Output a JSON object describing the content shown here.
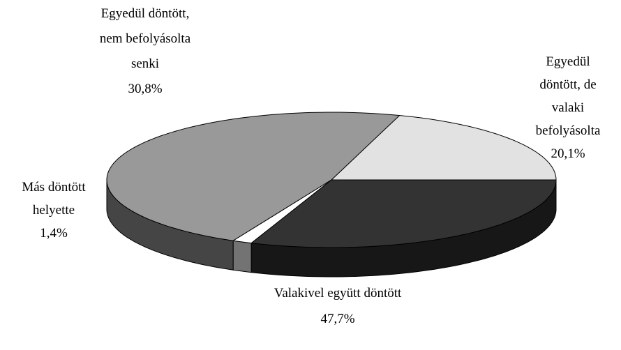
{
  "chart_data": {
    "type": "pie3d",
    "categories": [
      "Egyedül döntött, de valaki befolyásolta",
      "Valakivel együtt döntött",
      "Más döntött helyette",
      "Egyedül döntött, nem befolyásolta senki"
    ],
    "values": [
      20.1,
      47.7,
      1.4,
      30.8
    ],
    "value_labels": [
      "20,1%",
      "47,7%",
      "1,4%",
      "30,8%"
    ],
    "colors": [
      "#e2e2e2",
      "#999999",
      "#ffffff",
      "#333333"
    ]
  }
}
